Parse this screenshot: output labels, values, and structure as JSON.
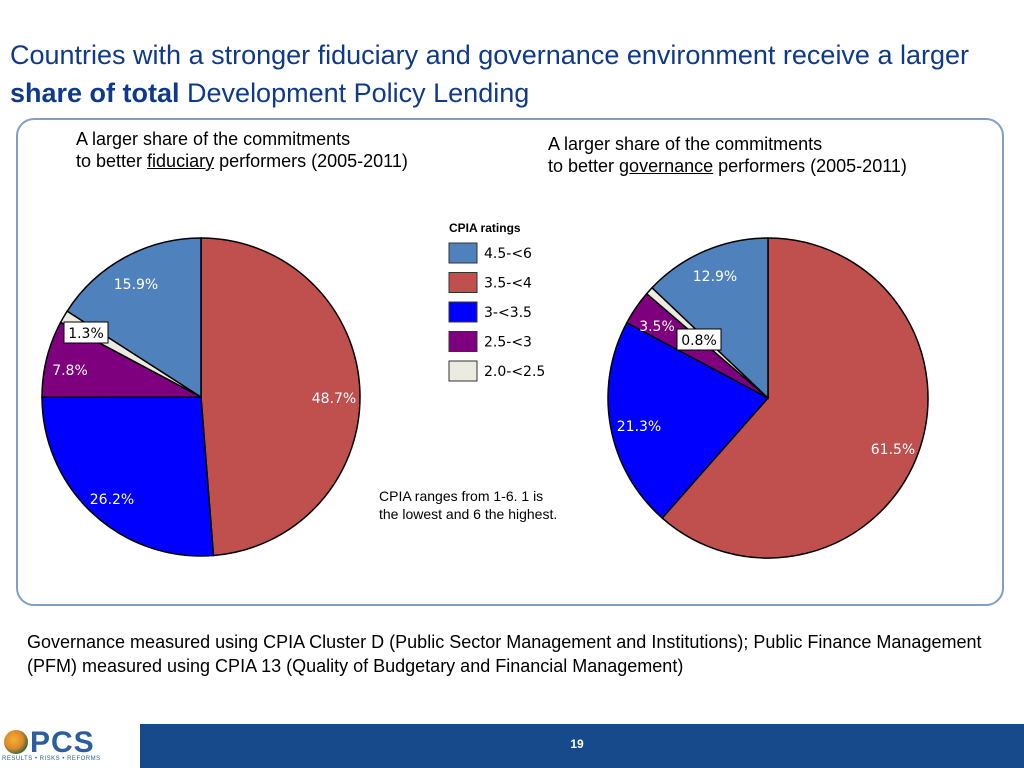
{
  "slide": {
    "title_part1": "Countries with a stronger fiduciary and governance environment receive a larger ",
    "title_bold": "share of total",
    "title_part2": " Development Policy Lending",
    "note": "CPIA ranges from 1-6. 1 is the lowest and 6 the highest.",
    "footnote": "Governance  measured using CPIA Cluster D (Public Sector Management and Institutions); Public Finance Management  (PFM) measured using CPIA 13 (Quality of Budgetary and Financial Management)",
    "page_number": "19",
    "logo_text": "PCS",
    "logo_tagline": "RESULTS • RISKS • REFORMS"
  },
  "legend_title": "CPIA ratings",
  "colors": {
    "4.5-<6": "#4f81bd",
    "3.5-<4": "#c0504d",
    "3-<3.5": "#0000ff",
    "2.5-<3": "#7f007f",
    "2.0-<2.5": "#ebebe0"
  },
  "chart_data": [
    {
      "type": "pie",
      "title_line1": "A larger share of the commitments",
      "title_line2_pre": "to better ",
      "title_line2_u": "fiduciary",
      "title_line2_post": " performers (2005-2011)",
      "slices": [
        {
          "label": "3.5-<4",
          "value": 48.7,
          "text": "48.7%"
        },
        {
          "label": "3-<3.5",
          "value": 26.2,
          "text": "26.2%"
        },
        {
          "label": "2.5-<3",
          "value": 7.8,
          "text": "7.8%"
        },
        {
          "label": "2.0-<2.5",
          "value": 1.3,
          "text": "1.3%"
        },
        {
          "label": "4.5-<6",
          "value": 15.9,
          "text": "15.9%"
        }
      ]
    },
    {
      "type": "pie",
      "title_line1": "A larger share of the commitments",
      "title_line2_pre": "to better ",
      "title_line2_u": "governance",
      "title_line2_post": " performers (2005-2011)",
      "slices": [
        {
          "label": "3.5-<4",
          "value": 61.5,
          "text": "61.5%"
        },
        {
          "label": "3-<3.5",
          "value": 21.3,
          "text": "21.3%"
        },
        {
          "label": "2.5-<3",
          "value": 3.5,
          "text": "3.5%"
        },
        {
          "label": "2.0-<2.5",
          "value": 0.8,
          "text": "0.8%"
        },
        {
          "label": "4.5-<6",
          "value": 12.9,
          "text": "12.9%"
        }
      ]
    }
  ],
  "legend": [
    "4.5-<6",
    "3.5-<4",
    "3-<3.5",
    "2.5-<3",
    "2.0-<2.5"
  ]
}
